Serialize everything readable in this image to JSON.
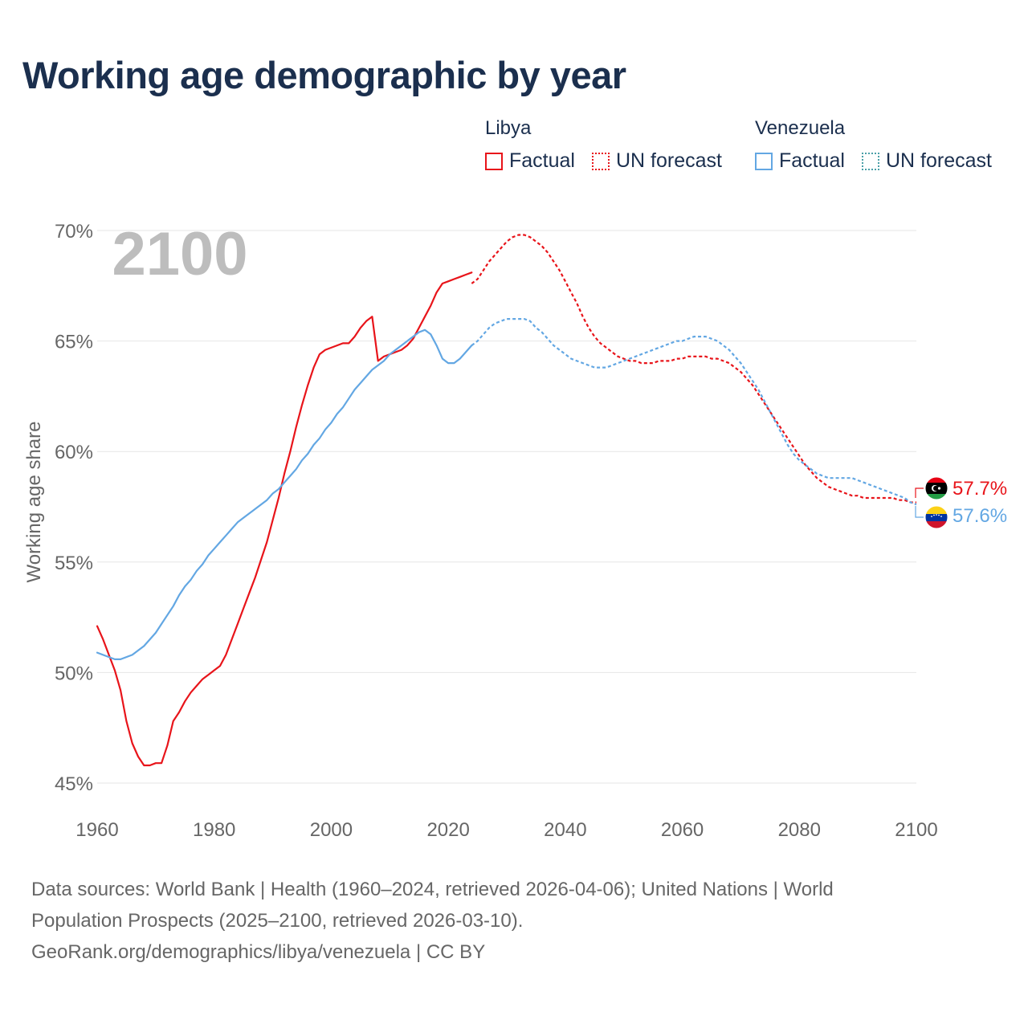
{
  "title": "Working age demographic by year",
  "legend": {
    "groups": [
      {
        "name": "Libya",
        "factual": "Factual",
        "forecast": "UN forecast",
        "color": "#e8141a"
      },
      {
        "name": "Venezuela",
        "factual": "Factual",
        "forecast": "UN forecast",
        "color": "#63a7e3"
      }
    ]
  },
  "year_overlay": "2100",
  "end_labels": {
    "libya": "57.7%",
    "venezuela": "57.6%"
  },
  "footer": {
    "line1": "Data sources: World Bank | Health (1960–2024, retrieved 2026-04-06); United Nations | World",
    "line2": "Population Prospects (2025–2100, retrieved 2026-03-10).",
    "line3": "GeoRank.org/demographics/libya/venezuela | CC BY"
  },
  "chart_data": {
    "type": "line",
    "ylabel": "Working age share",
    "xlabel": "",
    "xlim": [
      1960,
      2100
    ],
    "ylim": [
      45,
      70
    ],
    "xticks": [
      1960,
      1980,
      2000,
      2020,
      2040,
      2060,
      2080,
      2100
    ],
    "xtick_labels": [
      "1960",
      "1980",
      "2000",
      "2020",
      "2040",
      "2060",
      "2080",
      "2100"
    ],
    "yticks": [
      45,
      50,
      55,
      60,
      65,
      70
    ],
    "ytick_labels": [
      "45%",
      "50%",
      "55%",
      "60%",
      "65%",
      "70%"
    ],
    "grid": true,
    "series": [
      {
        "name": "Libya Factual",
        "color": "#e8141a",
        "style": "solid",
        "x": [
          1960,
          1961,
          1962,
          1963,
          1964,
          1965,
          1966,
          1967,
          1968,
          1969,
          1970,
          1971,
          1972,
          1973,
          1974,
          1975,
          1976,
          1977,
          1978,
          1979,
          1980,
          1981,
          1982,
          1983,
          1984,
          1985,
          1986,
          1987,
          1988,
          1989,
          1990,
          1991,
          1992,
          1993,
          1994,
          1995,
          1996,
          1997,
          1998,
          1999,
          2000,
          2001,
          2002,
          2003,
          2004,
          2005,
          2006,
          2007,
          2008,
          2009,
          2010,
          2011,
          2012,
          2013,
          2014,
          2015,
          2016,
          2017,
          2018,
          2019,
          2020,
          2021,
          2022,
          2023,
          2024
        ],
        "y": [
          52.1,
          51.5,
          50.8,
          50.1,
          49.2,
          47.8,
          46.8,
          46.2,
          45.8,
          45.8,
          45.9,
          45.9,
          46.7,
          47.8,
          48.2,
          48.7,
          49.1,
          49.4,
          49.7,
          49.9,
          50.1,
          50.3,
          50.8,
          51.5,
          52.2,
          52.9,
          53.6,
          54.3,
          55.1,
          55.9,
          56.9,
          57.9,
          59.0,
          60.0,
          61.1,
          62.1,
          63.0,
          63.8,
          64.4,
          64.6,
          64.7,
          64.8,
          64.9,
          64.9,
          65.2,
          65.6,
          65.9,
          66.1,
          64.1,
          64.3,
          64.4,
          64.5,
          64.6,
          64.8,
          65.1,
          65.6,
          66.1,
          66.6,
          67.2,
          67.6,
          67.7,
          67.8,
          67.9,
          68.0,
          68.1
        ]
      },
      {
        "name": "Libya UN forecast",
        "color": "#e8141a",
        "style": "dotted",
        "x": [
          2024,
          2025,
          2026,
          2027,
          2028,
          2029,
          2030,
          2031,
          2032,
          2033,
          2034,
          2035,
          2036,
          2037,
          2038,
          2039,
          2040,
          2041,
          2042,
          2043,
          2044,
          2045,
          2046,
          2047,
          2048,
          2049,
          2050,
          2051,
          2052,
          2053,
          2054,
          2055,
          2056,
          2057,
          2058,
          2059,
          2060,
          2061,
          2062,
          2063,
          2064,
          2065,
          2066,
          2067,
          2068,
          2069,
          2070,
          2071,
          2072,
          2073,
          2074,
          2075,
          2076,
          2077,
          2078,
          2079,
          2080,
          2081,
          2082,
          2083,
          2084,
          2085,
          2086,
          2087,
          2088,
          2089,
          2090,
          2091,
          2092,
          2093,
          2094,
          2095,
          2096,
          2097,
          2098,
          2099,
          2100
        ],
        "y": [
          67.6,
          67.8,
          68.2,
          68.6,
          68.9,
          69.2,
          69.5,
          69.7,
          69.8,
          69.8,
          69.7,
          69.5,
          69.3,
          69.0,
          68.6,
          68.2,
          67.7,
          67.2,
          66.7,
          66.1,
          65.6,
          65.2,
          64.9,
          64.7,
          64.5,
          64.3,
          64.2,
          64.1,
          64.1,
          64.0,
          64.0,
          64.0,
          64.1,
          64.1,
          64.1,
          64.2,
          64.2,
          64.3,
          64.3,
          64.3,
          64.3,
          64.2,
          64.2,
          64.1,
          64.0,
          63.8,
          63.6,
          63.3,
          63.0,
          62.6,
          62.2,
          61.8,
          61.4,
          61.0,
          60.6,
          60.2,
          59.8,
          59.4,
          59.1,
          58.8,
          58.6,
          58.4,
          58.3,
          58.2,
          58.1,
          58.0,
          58.0,
          57.9,
          57.9,
          57.9,
          57.9,
          57.9,
          57.9,
          57.8,
          57.8,
          57.7,
          57.7
        ]
      },
      {
        "name": "Venezuela Factual",
        "color": "#63a7e3",
        "style": "solid",
        "x": [
          1960,
          1961,
          1962,
          1963,
          1964,
          1965,
          1966,
          1967,
          1968,
          1969,
          1970,
          1971,
          1972,
          1973,
          1974,
          1975,
          1976,
          1977,
          1978,
          1979,
          1980,
          1981,
          1982,
          1983,
          1984,
          1985,
          1986,
          1987,
          1988,
          1989,
          1990,
          1991,
          1992,
          1993,
          1994,
          1995,
          1996,
          1997,
          1998,
          1999,
          2000,
          2001,
          2002,
          2003,
          2004,
          2005,
          2006,
          2007,
          2008,
          2009,
          2010,
          2011,
          2012,
          2013,
          2014,
          2015,
          2016,
          2017,
          2018,
          2019,
          2020,
          2021,
          2022,
          2023,
          2024
        ],
        "y": [
          50.9,
          50.8,
          50.7,
          50.6,
          50.6,
          50.7,
          50.8,
          51.0,
          51.2,
          51.5,
          51.8,
          52.2,
          52.6,
          53.0,
          53.5,
          53.9,
          54.2,
          54.6,
          54.9,
          55.3,
          55.6,
          55.9,
          56.2,
          56.5,
          56.8,
          57.0,
          57.2,
          57.4,
          57.6,
          57.8,
          58.1,
          58.3,
          58.6,
          58.9,
          59.2,
          59.6,
          59.9,
          60.3,
          60.6,
          61.0,
          61.3,
          61.7,
          62.0,
          62.4,
          62.8,
          63.1,
          63.4,
          63.7,
          63.9,
          64.1,
          64.4,
          64.6,
          64.8,
          65.0,
          65.2,
          65.4,
          65.5,
          65.3,
          64.8,
          64.2,
          64.0,
          64.0,
          64.2,
          64.5,
          64.8
        ]
      },
      {
        "name": "Venezuela UN forecast",
        "color": "#63a7e3",
        "style": "dotted",
        "x": [
          2024,
          2025,
          2026,
          2027,
          2028,
          2029,
          2030,
          2031,
          2032,
          2033,
          2034,
          2035,
          2036,
          2037,
          2038,
          2039,
          2040,
          2041,
          2042,
          2043,
          2044,
          2045,
          2046,
          2047,
          2048,
          2049,
          2050,
          2051,
          2052,
          2053,
          2054,
          2055,
          2056,
          2057,
          2058,
          2059,
          2060,
          2061,
          2062,
          2063,
          2064,
          2065,
          2066,
          2067,
          2068,
          2069,
          2070,
          2071,
          2072,
          2073,
          2074,
          2075,
          2076,
          2077,
          2078,
          2079,
          2080,
          2081,
          2082,
          2083,
          2084,
          2085,
          2086,
          2087,
          2088,
          2089,
          2090,
          2091,
          2092,
          2093,
          2094,
          2095,
          2096,
          2097,
          2098,
          2099,
          2100
        ],
        "y": [
          64.8,
          65.0,
          65.3,
          65.6,
          65.8,
          65.9,
          66.0,
          66.0,
          66.0,
          66.0,
          65.9,
          65.6,
          65.4,
          65.1,
          64.8,
          64.6,
          64.4,
          64.2,
          64.1,
          64.0,
          63.9,
          63.8,
          63.8,
          63.8,
          63.9,
          64.0,
          64.1,
          64.2,
          64.3,
          64.4,
          64.5,
          64.6,
          64.7,
          64.8,
          64.9,
          65.0,
          65.0,
          65.1,
          65.2,
          65.2,
          65.2,
          65.1,
          65.0,
          64.8,
          64.6,
          64.3,
          64.0,
          63.6,
          63.2,
          62.8,
          62.3,
          61.8,
          61.3,
          60.8,
          60.3,
          59.9,
          59.6,
          59.4,
          59.2,
          59.0,
          58.9,
          58.8,
          58.8,
          58.8,
          58.8,
          58.8,
          58.7,
          58.6,
          58.5,
          58.4,
          58.3,
          58.2,
          58.1,
          58.0,
          57.9,
          57.7,
          57.6
        ]
      }
    ]
  }
}
